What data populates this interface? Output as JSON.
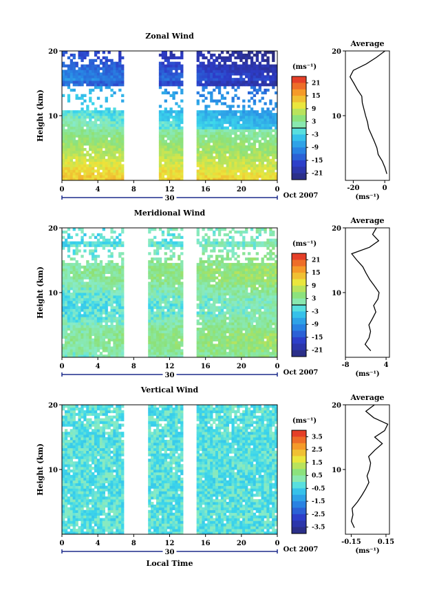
{
  "chart_data": [
    {
      "type": "heatmap",
      "title": "Zonal Wind",
      "ylabel": "Height (km)",
      "ylim": [
        0,
        20
      ],
      "x_ticks": [
        "0",
        "4",
        "8",
        "12",
        "16",
        "20",
        "0"
      ],
      "y_ticks": [
        "10",
        "20"
      ],
      "day_label": "30",
      "month_label": "Oct 2007",
      "colorbar": {
        "unit": "(ms⁻¹)",
        "levels": [
          21,
          15,
          9,
          3,
          -3,
          -9,
          -15,
          -21
        ],
        "labels": [
          "21",
          "15",
          "9",
          "3",
          "-3",
          "-9",
          "-15",
          "-21"
        ]
      },
      "data_gaps_local_time": [
        [
          6.8,
          10.9
        ],
        [
          13.6,
          14.9
        ]
      ],
      "average_profile": {
        "title": "Average",
        "x_label": "(ms⁻¹)",
        "x_ticks": [
          "-20",
          "0"
        ],
        "y_ticks": [
          "10",
          "20"
        ],
        "xlim": [
          -25,
          3
        ],
        "heights": [
          1,
          2,
          3,
          4,
          5,
          6,
          7,
          8,
          9,
          10,
          11,
          12,
          13,
          14,
          15,
          16,
          17,
          18,
          19,
          20
        ],
        "values": [
          1.5,
          0,
          -2,
          -4,
          -5,
          -7,
          -8,
          -10,
          -11,
          -12,
          -13,
          -14,
          -15,
          -17,
          -20,
          -22,
          -20,
          -12,
          -5,
          0
        ]
      }
    },
    {
      "type": "heatmap",
      "title": "Meridional Wind",
      "ylabel": "Height (km)",
      "ylim": [
        0,
        20
      ],
      "x_ticks": [
        "0",
        "4",
        "8",
        "12",
        "16",
        "20",
        "0"
      ],
      "y_ticks": [
        "10",
        "20"
      ],
      "day_label": "30",
      "month_label": "Oct 2007",
      "colorbar": {
        "unit": "(ms⁻¹)",
        "levels": [
          21,
          15,
          9,
          3,
          -3,
          -9,
          -15,
          -21
        ],
        "labels": [
          "21",
          "15",
          "9",
          "3",
          "-3",
          "-9",
          "-15",
          "-21"
        ]
      },
      "data_gaps_local_time": [
        [
          6.8,
          9.5
        ],
        [
          13.6,
          14.9
        ]
      ],
      "average_profile": {
        "title": "Average",
        "x_label": "(ms⁻¹)",
        "x_ticks": [
          "-8",
          "4"
        ],
        "y_ticks": [
          "10",
          "20"
        ],
        "xlim": [
          -8,
          5
        ],
        "heights": [
          1,
          2,
          3,
          4,
          5,
          6,
          7,
          8,
          9,
          10,
          11,
          12,
          13,
          14,
          15,
          16,
          17,
          18,
          19,
          20
        ],
        "values": [
          -0.5,
          -2,
          -1,
          -0.5,
          -1,
          0,
          1,
          0.5,
          1.5,
          2,
          0.5,
          -1,
          -2,
          -3,
          -4.5,
          -6,
          -1,
          2,
          0,
          1
        ]
      }
    },
    {
      "type": "heatmap",
      "title": "Vertical Wind",
      "ylabel": "Height (km)",
      "xlabel": "Local Time",
      "ylim": [
        0,
        20
      ],
      "x_ticks": [
        "0",
        "4",
        "8",
        "12",
        "16",
        "20",
        "0"
      ],
      "y_ticks": [
        "10",
        "20"
      ],
      "day_label": "30",
      "month_label": "Oct 2007",
      "colorbar": {
        "unit": "(ms⁻¹)",
        "levels": [
          3.5,
          2.5,
          1.5,
          0.5,
          -0.5,
          -1.5,
          -2.5,
          -3.5
        ],
        "labels": [
          "3.5",
          "2.5",
          "1.5",
          "0.5",
          "-0.5",
          "-1.5",
          "-2.5",
          "-3.5"
        ]
      },
      "data_gaps_local_time": [
        [
          6.8,
          9.5
        ],
        [
          13.6,
          14.9
        ]
      ],
      "average_profile": {
        "title": "Average",
        "x_label": "(ms⁻¹)",
        "x_ticks": [
          "-0.15",
          "0.15"
        ],
        "y_ticks": [
          "10",
          "20"
        ],
        "xlim": [
          -0.2,
          0.18
        ],
        "heights": [
          1,
          2,
          3,
          4,
          5,
          6,
          7,
          8,
          9,
          10,
          11,
          12,
          13,
          14,
          15,
          16,
          17,
          18,
          19,
          20
        ],
        "values": [
          -0.12,
          -0.15,
          -0.13,
          -0.14,
          -0.1,
          -0.06,
          -0.03,
          0.0,
          -0.01,
          0.01,
          0.02,
          0.0,
          0.05,
          0.12,
          0.05,
          0.14,
          0.17,
          0.05,
          -0.02,
          0.05
        ]
      }
    }
  ]
}
